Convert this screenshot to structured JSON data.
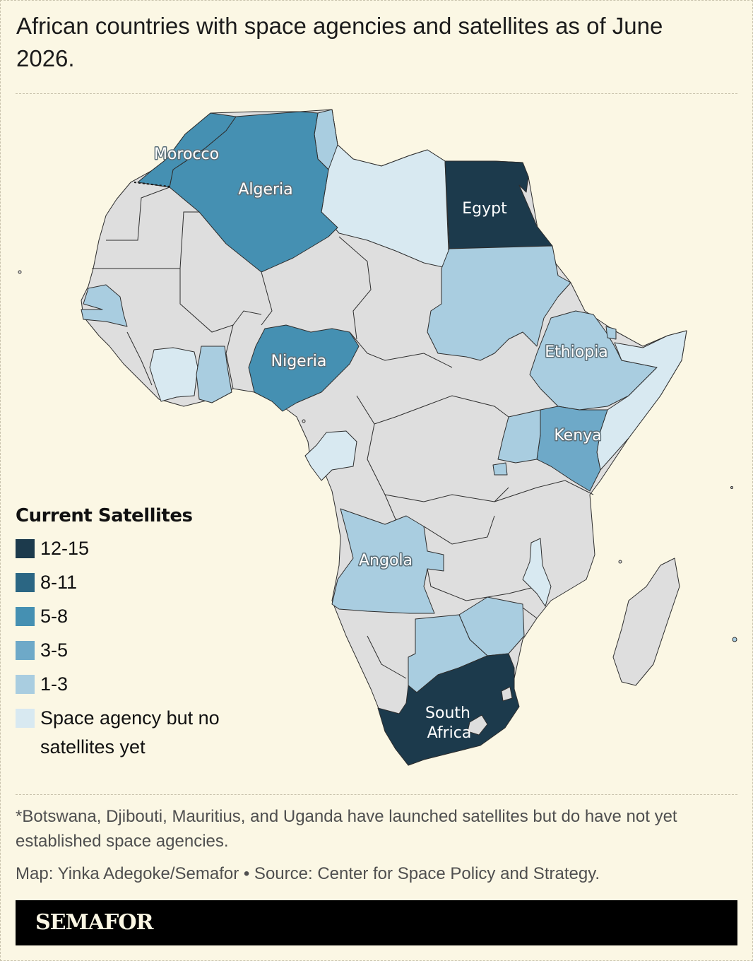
{
  "header": {
    "title": "African countries with space agencies and satellites as of June 2026."
  },
  "map": {
    "region": "Africa",
    "colors": {
      "12-15": "#1c3a4c",
      "8-11": "#2b6683",
      "5-8": "#4590b2",
      "3-5": "#6ea9c8",
      "1-3": "#a9cde0",
      "agency_only": "#d8e9f1",
      "none": "#dedede",
      "background": "#fbf7e4"
    },
    "countries": [
      {
        "name": "Egypt",
        "category": "12-15"
      },
      {
        "name": "South Africa",
        "category": "12-15"
      },
      {
        "name": "Morocco",
        "category": "5-8"
      },
      {
        "name": "Algeria",
        "category": "5-8"
      },
      {
        "name": "Nigeria",
        "category": "5-8"
      },
      {
        "name": "Kenya",
        "category": "3-5"
      },
      {
        "name": "Ethiopia",
        "category": "1-3"
      },
      {
        "name": "Angola",
        "category": "1-3"
      }
    ],
    "labels": {
      "morocco": "Morocco",
      "algeria": "Algeria",
      "egypt": "Egypt",
      "nigeria": "Nigeria",
      "ethiopia": "Ethiopia",
      "kenya": "Kenya",
      "angola": "Angola",
      "south_africa_1": "South",
      "south_africa_2": "Africa"
    }
  },
  "legend": {
    "title": "Current Satellites",
    "items": [
      {
        "label": "12-15",
        "color": "#1c3a4c"
      },
      {
        "label": "8-11",
        "color": "#2b6683"
      },
      {
        "label": "5-8",
        "color": "#4590b2"
      },
      {
        "label": "3-5",
        "color": "#6ea9c8"
      },
      {
        "label": "1-3",
        "color": "#a9cde0"
      },
      {
        "label": "Space agency but no satellites yet",
        "color": "#d8e9f1"
      }
    ]
  },
  "footnote": "*Botswana, Djibouti, Mauritius, and Uganda have launched satellites but do have not yet established space agencies.",
  "credit": "Map: Yinka Adegoke/Semafor • Source: Center for Space Policy and Strategy.",
  "brand": "SEMAFOR"
}
